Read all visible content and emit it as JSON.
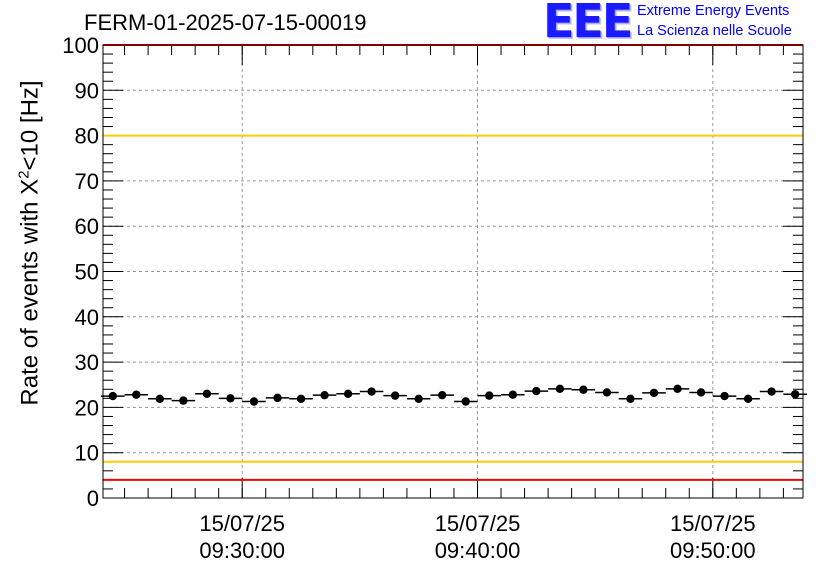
{
  "title": "FERM-01-2025-07-15-00019",
  "logo": {
    "mark": "EEE",
    "line1": "Extreme Energy Events",
    "line2": "La Scienza nelle Scuole",
    "color": "#0000ee"
  },
  "chart_data": {
    "type": "scatter",
    "ylabel_prefix": "Rate of events with X",
    "ylabel_sup": "2",
    "ylabel_suffix": "<10 [Hz]",
    "ylim": [
      0,
      100
    ],
    "y_ticks": [
      "0",
      "10",
      "20",
      "30",
      "40",
      "50",
      "60",
      "70",
      "80",
      "90",
      "100"
    ],
    "x_ticks": [
      {
        "time": "09:30:00",
        "date": "15/07/25"
      },
      {
        "time": "09:40:00",
        "date": "15/07/25"
      },
      {
        "time": "09:50:00",
        "date": "15/07/25"
      }
    ],
    "x_range": [
      "09:24:05",
      "09:53:50"
    ],
    "grid": true,
    "bin_width_seconds": 60,
    "series": [
      {
        "x": [
          "09:24:30",
          "09:25:30",
          "09:26:30",
          "09:27:30",
          "09:28:30",
          "09:29:30",
          "09:30:30",
          "09:31:30",
          "09:32:30",
          "09:33:30",
          "09:34:30",
          "09:35:30",
          "09:36:30",
          "09:37:30",
          "09:38:30",
          "09:39:30",
          "09:40:30",
          "09:41:30",
          "09:42:30",
          "09:43:30",
          "09:44:30",
          "09:45:30",
          "09:46:30",
          "09:47:30",
          "09:48:30",
          "09:49:30",
          "09:50:30",
          "09:51:30",
          "09:52:30",
          "09:53:30"
        ],
        "y": [
          22.5,
          22.8,
          21.9,
          21.5,
          23.0,
          22.0,
          21.3,
          22.1,
          21.9,
          22.7,
          23.0,
          23.5,
          22.6,
          21.9,
          22.7,
          21.3,
          22.6,
          22.8,
          23.6,
          24.1,
          23.9,
          23.3,
          21.9,
          23.2,
          24.1,
          23.3,
          22.5,
          21.9,
          23.5,
          22.9
        ],
        "color": "#000000"
      }
    ],
    "reference_lines": [
      {
        "y": 100,
        "color": "#ff0000"
      },
      {
        "y": 80,
        "color": "#ffcc00"
      },
      {
        "y": 8,
        "color": "#ffcc00"
      },
      {
        "y": 4,
        "color": "#ff0000"
      }
    ]
  }
}
